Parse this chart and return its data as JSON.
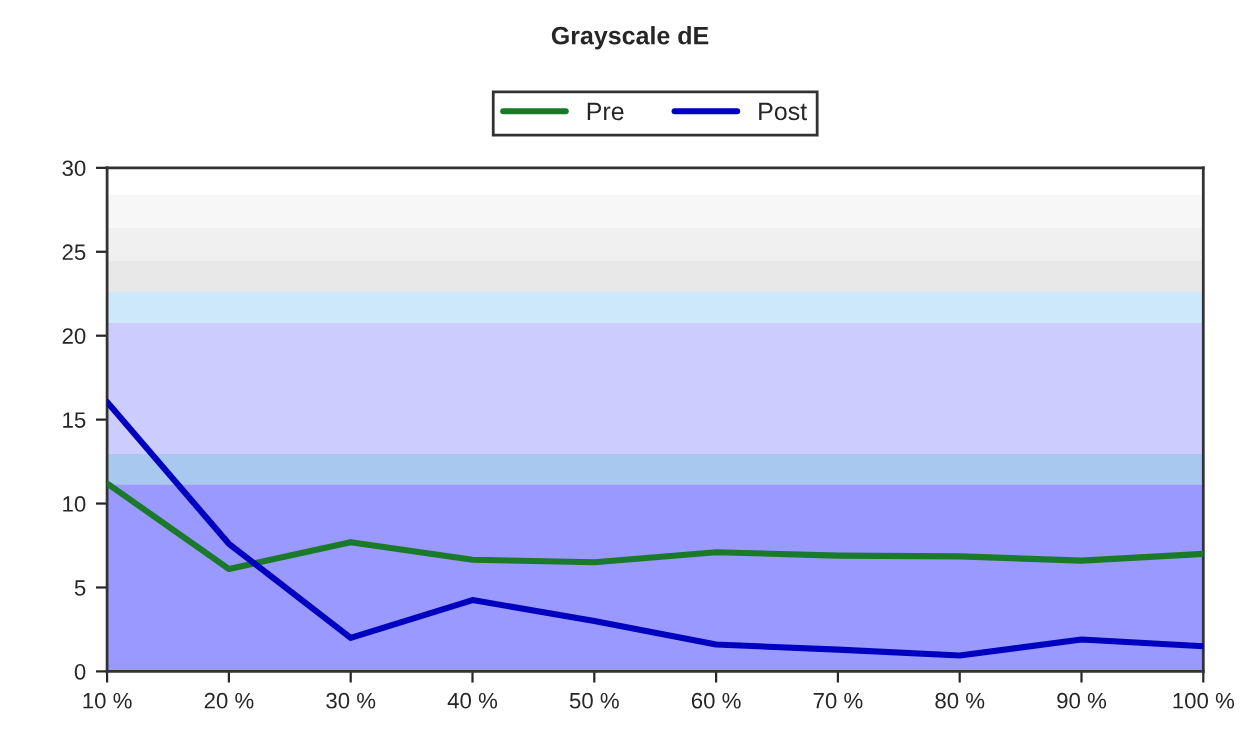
{
  "chart_data": {
    "type": "line",
    "title": "Grayscale dE",
    "categories": [
      "10 %",
      "20 %",
      "30 %",
      "40 %",
      "50 %",
      "60 %",
      "70 %",
      "80 %",
      "90 %",
      "100 %"
    ],
    "series": [
      {
        "name": "Pre",
        "color": "#1a7a2a",
        "values": [
          11.2,
          6.1,
          7.7,
          6.65,
          6.5,
          7.1,
          6.9,
          6.85,
          6.6,
          7.0
        ]
      },
      {
        "name": "Post",
        "color": "#0000c0",
        "values": [
          16.05,
          7.6,
          2.0,
          4.25,
          3.0,
          1.6,
          1.3,
          0.95,
          1.9,
          1.5
        ]
      }
    ],
    "ylim": [
      0,
      30
    ],
    "yticks": [
      0,
      5,
      10,
      15,
      20,
      25,
      30
    ],
    "bands": [
      {
        "axis": "y",
        "from": 0,
        "to": 11.15,
        "color": "#9999ff"
      },
      {
        "axis": "y",
        "from": 11.15,
        "to": 12.95,
        "color": "#a8c8f0"
      },
      {
        "axis": "y",
        "from": 12.95,
        "to": 20.75,
        "color": "#ccccff"
      },
      {
        "axis": "y",
        "from": 20.75,
        "to": 22.6,
        "color": "#cce8fa"
      },
      {
        "axis": "y",
        "from": 22.6,
        "to": 24.5,
        "color": "#e8e8e8"
      },
      {
        "axis": "y",
        "from": 24.5,
        "to": 26.45,
        "color": "#f0f0f0"
      },
      {
        "axis": "y",
        "from": 26.45,
        "to": 28.4,
        "color": "#f7f7f7"
      }
    ],
    "legend": "top",
    "grid": false,
    "marker": "none",
    "line_style": "solid"
  }
}
